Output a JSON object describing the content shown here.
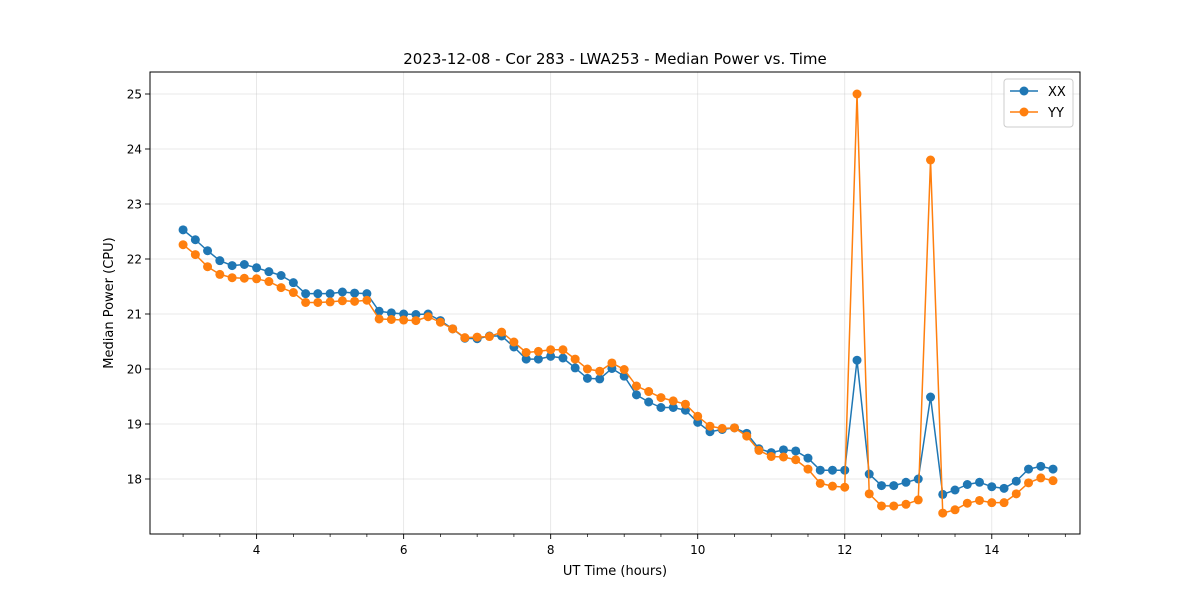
{
  "chart_data": {
    "type": "line",
    "title": "2023-12-08 - Cor 283 - LWA253 - Median Power vs. Time",
    "xlabel": "UT Time (hours)",
    "ylabel": "Median Power (CPU)",
    "xlim": [
      2.55,
      15.2
    ],
    "ylim": [
      17.0,
      25.4
    ],
    "xticks": [
      4,
      6,
      8,
      10,
      12,
      14
    ],
    "xtick_labels": [
      "4",
      "6",
      "8",
      "10",
      "12",
      "14"
    ],
    "yticks": [
      18,
      19,
      20,
      21,
      22,
      23,
      24,
      25
    ],
    "ytick_labels": [
      "18",
      "19",
      "20",
      "21",
      "22",
      "23",
      "24",
      "25"
    ],
    "grid": true,
    "legend_position": "top-right",
    "x": [
      3.0,
      3.167,
      3.333,
      3.5,
      3.667,
      3.833,
      4.0,
      4.167,
      4.333,
      4.5,
      4.667,
      4.833,
      5.0,
      5.167,
      5.333,
      5.5,
      5.667,
      5.833,
      6.0,
      6.167,
      6.333,
      6.5,
      6.667,
      6.833,
      7.0,
      7.167,
      7.333,
      7.5,
      7.667,
      7.833,
      8.0,
      8.167,
      8.333,
      8.5,
      8.667,
      8.833,
      9.0,
      9.167,
      9.333,
      9.5,
      9.667,
      9.833,
      10.0,
      10.167,
      10.333,
      10.5,
      10.667,
      10.833,
      11.0,
      11.167,
      11.333,
      11.5,
      11.667,
      11.833,
      12.0,
      12.167,
      12.333,
      12.5,
      12.667,
      12.833,
      13.0,
      13.167,
      13.333,
      13.5,
      13.667,
      13.833,
      14.0,
      14.167,
      14.333,
      14.5,
      14.667,
      14.833
    ],
    "series": [
      {
        "name": "XX",
        "color": "#1f77b4",
        "values": [
          22.53,
          22.35,
          22.15,
          21.97,
          21.88,
          21.9,
          21.84,
          21.77,
          21.7,
          21.57,
          21.37,
          21.37,
          21.37,
          21.4,
          21.38,
          21.37,
          21.05,
          21.02,
          21.0,
          20.99,
          21.0,
          20.88,
          20.73,
          20.56,
          20.55,
          20.6,
          20.6,
          20.4,
          20.18,
          20.18,
          20.23,
          20.2,
          20.02,
          19.83,
          19.82,
          20.01,
          19.87,
          19.53,
          19.4,
          19.3,
          19.3,
          19.25,
          19.03,
          18.86,
          18.9,
          18.93,
          18.83,
          18.55,
          18.48,
          18.53,
          18.51,
          18.38,
          18.16,
          18.16,
          18.16,
          20.16,
          18.09,
          17.88,
          17.88,
          17.94,
          18.0,
          19.49,
          17.72,
          17.8,
          17.9,
          17.94,
          17.86,
          17.83,
          17.96,
          18.18,
          18.23,
          18.18
        ]
      },
      {
        "name": "YY",
        "color": "#ff7f0e",
        "values": [
          22.26,
          22.08,
          21.86,
          21.72,
          21.66,
          21.65,
          21.64,
          21.59,
          21.48,
          21.39,
          21.21,
          21.21,
          21.22,
          21.24,
          21.23,
          21.25,
          20.91,
          20.9,
          20.89,
          20.88,
          20.95,
          20.85,
          20.73,
          20.57,
          20.58,
          20.59,
          20.67,
          20.49,
          20.3,
          20.32,
          20.35,
          20.35,
          20.18,
          20.0,
          19.96,
          20.11,
          19.99,
          19.69,
          19.59,
          19.48,
          19.42,
          19.36,
          19.14,
          18.96,
          18.92,
          18.93,
          18.78,
          18.52,
          18.41,
          18.4,
          18.35,
          18.18,
          17.92,
          17.87,
          17.85,
          25.0,
          17.73,
          17.51,
          17.51,
          17.54,
          17.62,
          23.8,
          17.38,
          17.44,
          17.56,
          17.61,
          17.57,
          17.57,
          17.73,
          17.93,
          18.02,
          17.97
        ]
      }
    ]
  }
}
